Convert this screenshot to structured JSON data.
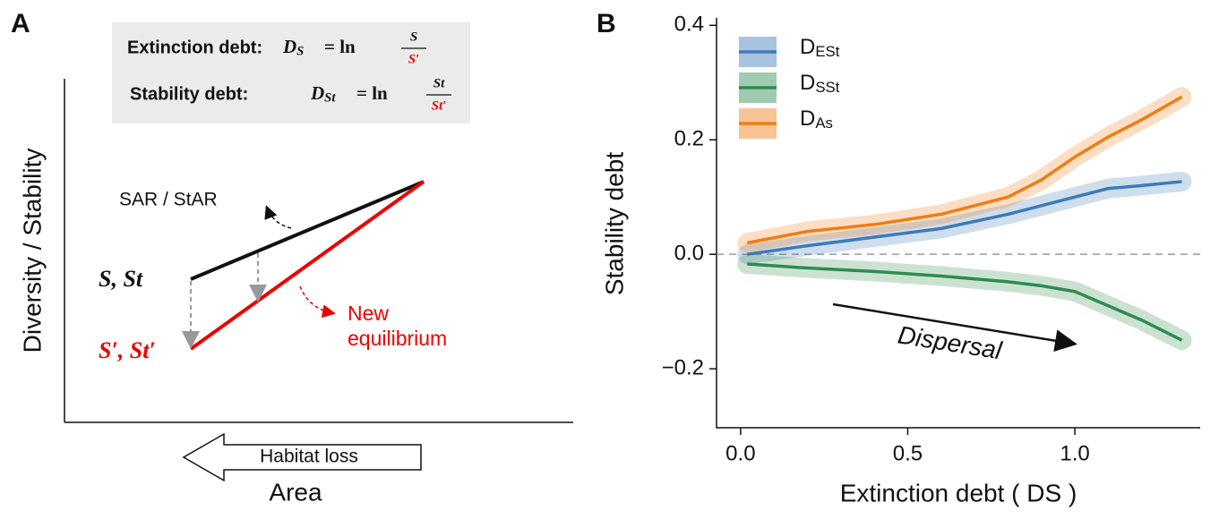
{
  "diagram": {
    "panel": "A",
    "formulas": [
      {
        "label": "Extinction debt:",
        "lhs": "DS",
        "op": "= ln",
        "num": "S",
        "den": "S′"
      },
      {
        "label": "Stability debt:",
        "lhs": "DSt",
        "op": "= ln",
        "num": "St",
        "den": "St′"
      }
    ],
    "y_axis": "Diversity / Stability",
    "x_axis": "Area",
    "arrow": "Habitat loss",
    "curve": "SAR / StAR",
    "before": "S, St",
    "after": "S′, St′",
    "equilibrium": [
      "New",
      "equilibrium"
    ]
  },
  "chart_data": {
    "type": "line",
    "panel": "B",
    "xlabel": "Extinction debt ( DS )",
    "ylabel": "Stability debt",
    "x": [
      0.02,
      0.2,
      0.4,
      0.6,
      0.8,
      0.9,
      1.0,
      1.1,
      1.2,
      1.32
    ],
    "series": [
      {
        "name": "DESt",
        "color": "#3d7ab8",
        "values": [
          0,
          0.015,
          0.03,
          0.045,
          0.07,
          0.085,
          0.1,
          0.115,
          0.12,
          0.127
        ]
      },
      {
        "name": "DSSt",
        "color": "#2e8b4f",
        "values": [
          -0.017,
          -0.024,
          -0.03,
          -0.038,
          -0.048,
          -0.055,
          -0.065,
          -0.09,
          -0.115,
          -0.15
        ]
      },
      {
        "name": "DAs",
        "color": "#ef7d14",
        "values": [
          0.02,
          0.04,
          0.052,
          0.07,
          0.1,
          0.13,
          0.17,
          0.205,
          0.235,
          0.275
        ]
      }
    ],
    "xlim": [
      -0.072,
      1.375
    ],
    "ylim": [
      -0.303,
      0.413
    ],
    "xticks": [
      {
        "value": 0,
        "label": "0.0"
      },
      {
        "value": 0.5,
        "label": "0.5"
      },
      {
        "value": 1.0,
        "label": "1.0"
      }
    ],
    "yticks": [
      {
        "value": -0.2,
        "label": "−0.2"
      },
      {
        "value": 0,
        "label": "0.0"
      },
      {
        "value": 0.2,
        "label": "0.2"
      },
      {
        "value": 0.4,
        "label": "0.4"
      }
    ],
    "reference_line": 0,
    "annotation": "Dispersal",
    "legend": "top-left"
  }
}
